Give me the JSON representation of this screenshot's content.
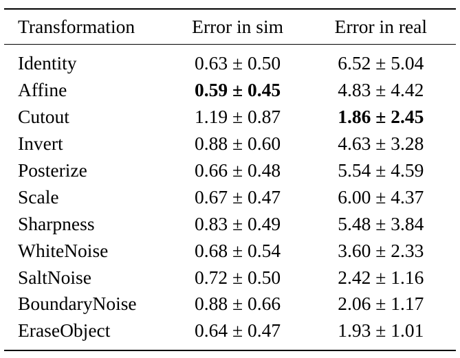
{
  "headers": [
    "Transformation",
    "Error in sim",
    "Error in real"
  ],
  "rows": [
    {
      "name": "Identity",
      "sim": "0.63 ± 0.50",
      "real": "6.52 ± 5.04",
      "sim_bold": false,
      "real_bold": false
    },
    {
      "name": "Affine",
      "sim": "0.59 ± 0.45",
      "real": "4.83 ± 4.42",
      "sim_bold": true,
      "real_bold": false
    },
    {
      "name": "Cutout",
      "sim": "1.19 ± 0.87",
      "real": "1.86 ± 2.45",
      "sim_bold": false,
      "real_bold": true
    },
    {
      "name": "Invert",
      "sim": "0.88 ± 0.60",
      "real": "4.63 ± 3.28",
      "sim_bold": false,
      "real_bold": false
    },
    {
      "name": "Posterize",
      "sim": "0.66 ± 0.48",
      "real": "5.54 ± 4.59",
      "sim_bold": false,
      "real_bold": false
    },
    {
      "name": "Scale",
      "sim": "0.67 ± 0.47",
      "real": "6.00 ± 4.37",
      "sim_bold": false,
      "real_bold": false
    },
    {
      "name": "Sharpness",
      "sim": "0.83 ± 0.49",
      "real": "5.48 ± 3.84",
      "sim_bold": false,
      "real_bold": false
    },
    {
      "name": "WhiteNoise",
      "sim": "0.68 ± 0.54",
      "real": "3.60 ± 2.33",
      "sim_bold": false,
      "real_bold": false
    },
    {
      "name": "SaltNoise",
      "sim": "0.72 ± 0.50",
      "real": "2.42 ± 1.16",
      "sim_bold": false,
      "real_bold": false
    },
    {
      "name": "BoundaryNoise",
      "sim": "0.88 ± 0.66",
      "real": "2.06 ± 1.17",
      "sim_bold": false,
      "real_bold": false
    },
    {
      "name": "EraseObject",
      "sim": "0.64 ± 0.47",
      "real": "1.93 ± 1.01",
      "sim_bold": false,
      "real_bold": false
    }
  ]
}
